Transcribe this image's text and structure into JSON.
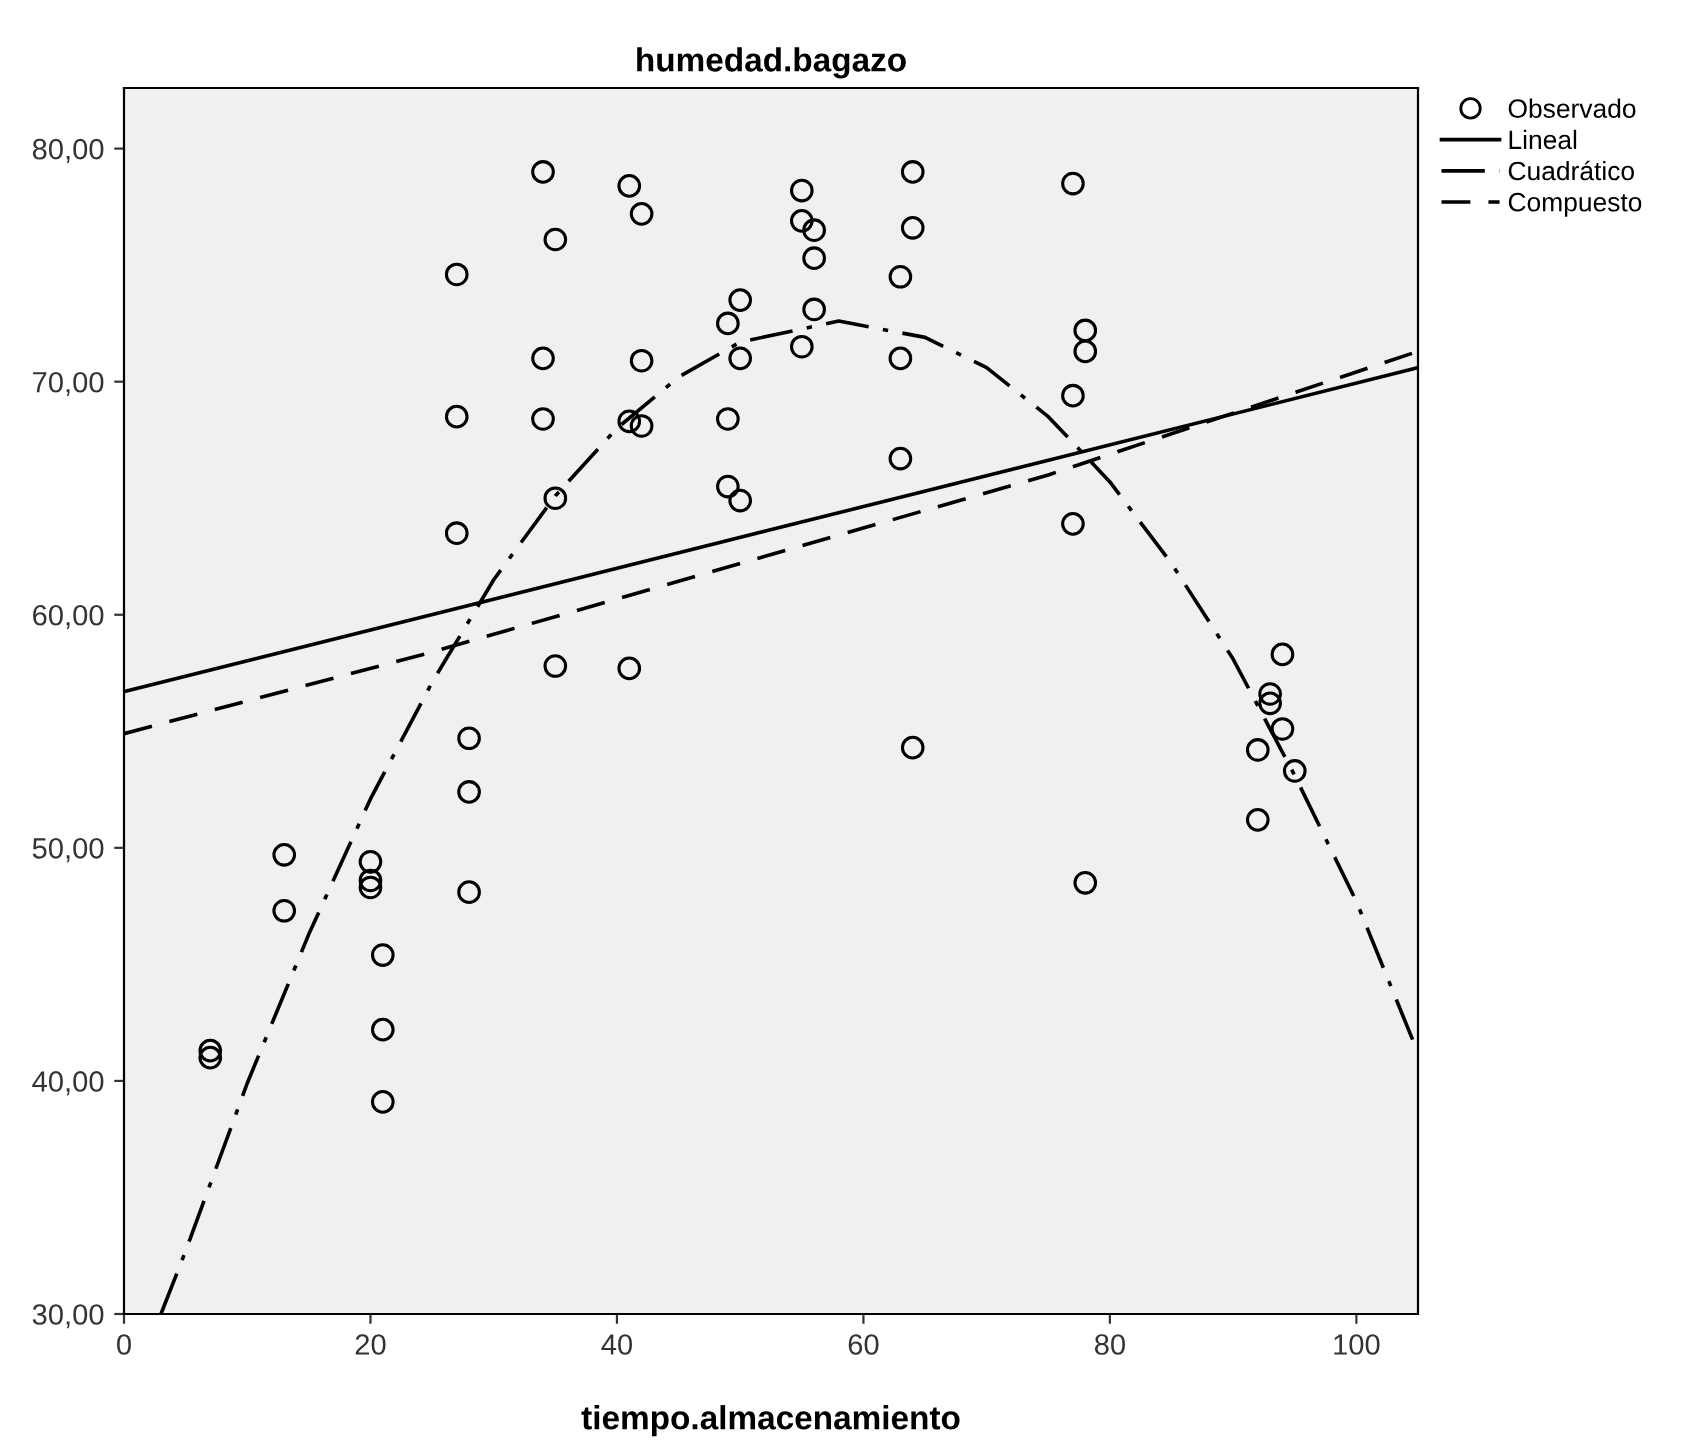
{
  "chart_data": {
    "type": "scatter",
    "title": "humedad.bagazo",
    "xlabel": "tiempo.almacenamiento",
    "xlim": [
      0,
      105
    ],
    "xticks": [
      0,
      20,
      40,
      60,
      80,
      100
    ],
    "ylim": [
      30,
      82.6
    ],
    "yticks": [
      {
        "value": 30,
        "label": "30,00"
      },
      {
        "value": 40,
        "label": "40,00"
      },
      {
        "value": 50,
        "label": "50,00"
      },
      {
        "value": 60,
        "label": "60,00"
      },
      {
        "value": 70,
        "label": "70,00"
      },
      {
        "value": 80,
        "label": "80,00"
      }
    ],
    "grid": false,
    "legend": "top right",
    "series": [
      {
        "name": "Observado",
        "marker": "circle",
        "color": "#000000",
        "x": [
          7,
          7,
          13,
          13,
          20,
          20,
          20,
          21,
          21,
          21,
          27,
          27,
          27,
          28,
          28,
          28,
          34,
          34,
          34,
          35,
          35,
          35,
          41,
          41,
          41,
          42,
          42,
          42,
          49,
          49,
          49,
          50,
          50,
          50,
          55,
          55,
          55,
          56,
          56,
          56,
          63,
          63,
          63,
          64,
          64,
          64,
          77,
          77,
          77,
          78,
          78,
          78,
          92,
          92,
          93,
          93,
          94,
          94,
          95
        ],
        "values": [
          41.3,
          41.0,
          49.7,
          47.3,
          49.4,
          48.6,
          48.3,
          45.4,
          42.2,
          39.1,
          74.6,
          68.5,
          63.5,
          54.7,
          52.4,
          48.1,
          79.0,
          71.0,
          68.4,
          76.1,
          65.0,
          57.8,
          78.4,
          68.3,
          57.7,
          77.2,
          70.9,
          68.1,
          72.5,
          68.4,
          65.5,
          73.5,
          71.0,
          64.9,
          78.2,
          76.9,
          71.5,
          76.5,
          75.3,
          73.1,
          74.5,
          71.0,
          66.7,
          79.0,
          76.6,
          54.3,
          78.5,
          69.4,
          63.9,
          72.2,
          71.3,
          48.5,
          54.2,
          51.2,
          56.6,
          56.2,
          58.3,
          55.1,
          53.3
        ]
      },
      {
        "name": "Lineal",
        "type": "line",
        "line_style": "solid",
        "color": "#000000",
        "x": [
          0,
          105
        ],
        "values": [
          56.7,
          70.6
        ]
      },
      {
        "name": "Cuadrático",
        "type": "line",
        "line_style": "dashdot",
        "color": "#000000",
        "x": [
          3,
          5,
          10,
          15,
          20,
          25,
          30,
          35,
          40,
          45,
          50,
          58,
          65,
          70,
          75,
          80,
          85,
          90,
          95,
          100,
          105
        ],
        "values": [
          30.0,
          32.7,
          39.9,
          46.3,
          52.1,
          57.1,
          61.5,
          65.1,
          68.0,
          70.2,
          71.7,
          72.6,
          71.9,
          70.6,
          68.5,
          65.7,
          62.2,
          58.1,
          53.1,
          47.7,
          41.2
        ]
      },
      {
        "name": "Compuesto",
        "type": "line",
        "line_style": "dashed",
        "color": "#000000",
        "x": [
          0,
          25,
          50,
          75,
          105
        ],
        "values": [
          54.9,
          58.4,
          62.2,
          66.0,
          71.3
        ]
      }
    ]
  }
}
